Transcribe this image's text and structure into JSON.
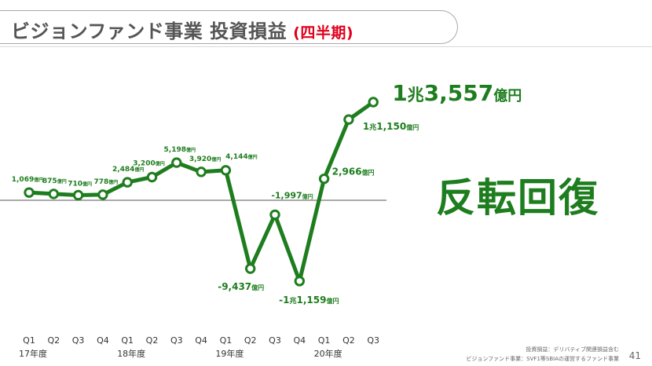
{
  "title": {
    "main": "ビジョンファンド事業 投資損益",
    "sub": "(四半期)"
  },
  "callout": "反転回復",
  "footnotes": [
    "投資損益：デリバティブ関連損益含む",
    "ビジョンファンド事業：SVF1等SBIAの運営するファンド事業"
  ],
  "page_number": "41",
  "colors": {
    "line": "#1e7d1e",
    "title_accent": "#e0001b",
    "title_text": "#555555"
  },
  "chart_data": {
    "type": "line",
    "categories": [
      "Q1",
      "Q2",
      "Q3",
      "Q4",
      "Q1",
      "Q2",
      "Q3",
      "Q4",
      "Q1",
      "Q2",
      "Q3",
      "Q4",
      "Q1",
      "Q2",
      "Q3"
    ],
    "year_groups": [
      {
        "label": "17年度",
        "start": 0
      },
      {
        "label": "18年度",
        "start": 4
      },
      {
        "label": "19年度",
        "start": 8
      },
      {
        "label": "20年度",
        "start": 12
      }
    ],
    "values": [
      1069,
      875,
      710,
      778,
      2484,
      3200,
      5198,
      3920,
      4144,
      -9437,
      -1997,
      -11159,
      2966,
      11150,
      13557
    ],
    "data_labels": [
      {
        "num": "1,069",
        "unit": "億円"
      },
      {
        "num": "875",
        "unit": "億円"
      },
      {
        "num": "710",
        "unit": "億円"
      },
      {
        "num": "778",
        "unit": "億円"
      },
      {
        "num": "2,484",
        "unit": "億円"
      },
      {
        "num": "3,200",
        "unit": "億円"
      },
      {
        "num": "5,198",
        "unit": "億円"
      },
      {
        "num": "3,920",
        "unit": "億円"
      },
      {
        "num": "4,144",
        "unit": "億円"
      },
      {
        "num": "-9,437",
        "unit": "億円"
      },
      {
        "num": "-1,997",
        "unit": "億円"
      },
      {
        "num": "-1兆1,159",
        "unit": "億円"
      },
      {
        "num": "2,966",
        "unit": "億円"
      },
      {
        "num": "1兆1,150",
        "unit": "億円"
      },
      {
        "num": "1兆3,557",
        "unit": "億円"
      }
    ],
    "title": "",
    "xlabel": "",
    "ylabel": "",
    "ylim": [
      -13000,
      15000
    ],
    "grid": false,
    "legend": "none",
    "zero_line": true
  }
}
